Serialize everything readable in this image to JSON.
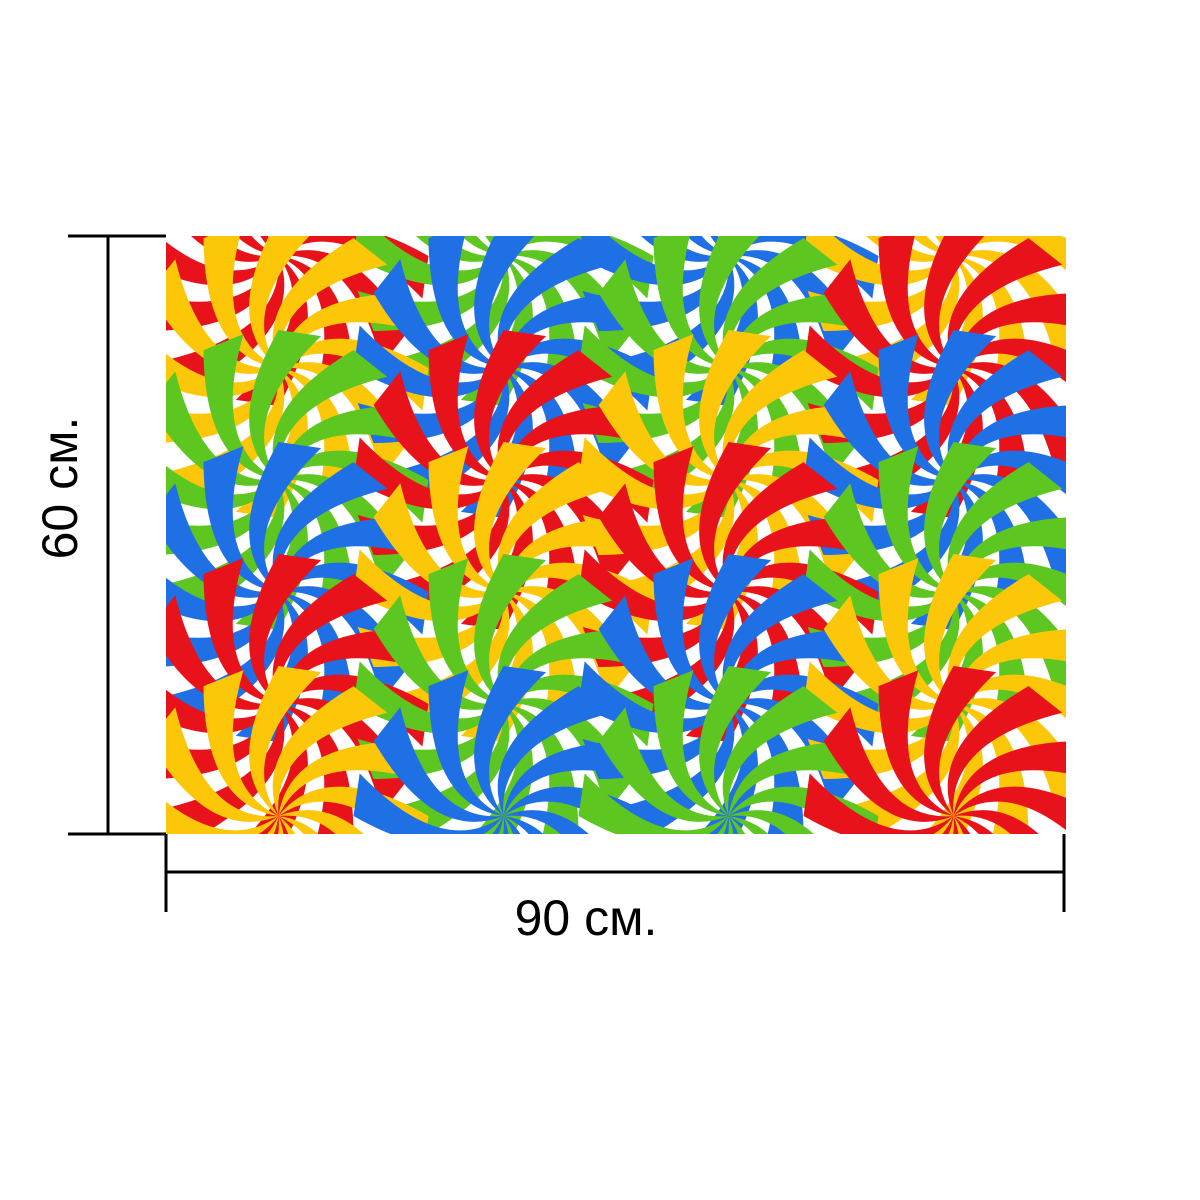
{
  "dimensions": {
    "width_label": "90 см.",
    "height_label": "60 см."
  },
  "pattern": {
    "motif": "swirl-pinwheel",
    "stripe_colors": [
      "#e8121a",
      "#fcc709",
      "#5dc620",
      "#1f6fe5"
    ],
    "background_color": "#ffffff",
    "rows": [
      [
        "red",
        "green",
        "blue",
        "yellow"
      ],
      [
        "yellow",
        "blue",
        "green",
        "red"
      ],
      [
        "green",
        "red",
        "yellow",
        "blue"
      ],
      [
        "blue",
        "yellow",
        "red",
        "green"
      ],
      [
        "red",
        "green",
        "blue",
        "yellow"
      ],
      [
        "yellow",
        "blue",
        "green",
        "red"
      ]
    ]
  }
}
